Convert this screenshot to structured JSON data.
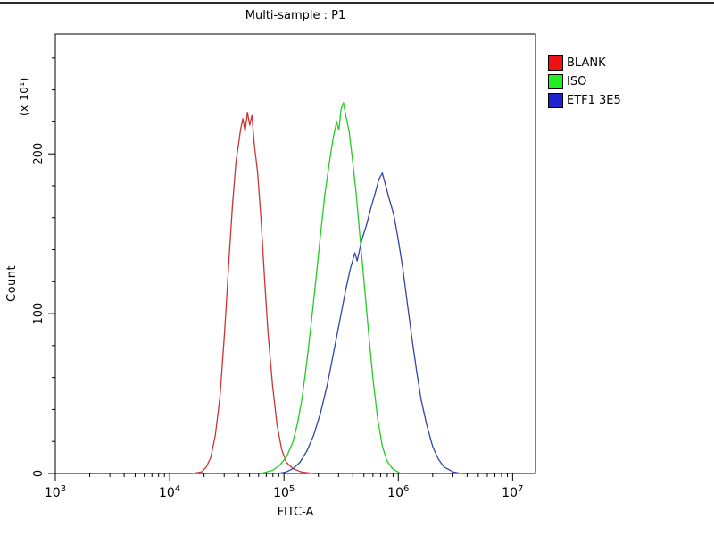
{
  "window": {
    "title_bar": ""
  },
  "chart_data": {
    "type": "line",
    "chart_kind": "flow-cytometry-histogram",
    "title": "Multi-sample : P1",
    "xlabel": "FITC-A",
    "ylabel": "Count",
    "y_multiplier_label": "(x 10¹)",
    "x_scale": "log10",
    "xlim_log10": [
      3,
      7.2
    ],
    "ylim": [
      0,
      275
    ],
    "x_tick_exponents": [
      3,
      4,
      5,
      6,
      7
    ],
    "y_ticks": [
      0,
      100,
      200
    ],
    "y_minor_step": 20,
    "grid": false,
    "legend_position": "outside-top-right",
    "legend": [
      {
        "label": "BLANK",
        "color": "#ee1111"
      },
      {
        "label": "ISO",
        "color": "#22ee22"
      },
      {
        "label": "ETF1 3E5",
        "color": "#2222cc"
      }
    ],
    "series": [
      {
        "name": "BLANK",
        "color": "#cc3333",
        "points_log10x_count": [
          [
            4.2,
            0
          ],
          [
            4.28,
            1
          ],
          [
            4.32,
            4
          ],
          [
            4.36,
            10
          ],
          [
            4.4,
            24
          ],
          [
            4.44,
            48
          ],
          [
            4.48,
            88
          ],
          [
            4.52,
            135
          ],
          [
            4.55,
            168
          ],
          [
            4.58,
            195
          ],
          [
            4.6,
            205
          ],
          [
            4.62,
            215
          ],
          [
            4.64,
            222
          ],
          [
            4.66,
            214
          ],
          [
            4.68,
            226
          ],
          [
            4.7,
            218
          ],
          [
            4.72,
            224
          ],
          [
            4.74,
            206
          ],
          [
            4.77,
            188
          ],
          [
            4.8,
            158
          ],
          [
            4.83,
            122
          ],
          [
            4.86,
            88
          ],
          [
            4.9,
            55
          ],
          [
            4.94,
            30
          ],
          [
            4.98,
            15
          ],
          [
            5.02,
            7
          ],
          [
            5.08,
            3
          ],
          [
            5.15,
            1
          ],
          [
            5.25,
            0
          ]
        ]
      },
      {
        "name": "ISO",
        "color": "#22cc22",
        "points_log10x_count": [
          [
            4.8,
            0
          ],
          [
            4.9,
            2
          ],
          [
            4.96,
            5
          ],
          [
            5.02,
            10
          ],
          [
            5.08,
            20
          ],
          [
            5.12,
            32
          ],
          [
            5.16,
            48
          ],
          [
            5.2,
            70
          ],
          [
            5.24,
            95
          ],
          [
            5.28,
            122
          ],
          [
            5.32,
            150
          ],
          [
            5.36,
            176
          ],
          [
            5.4,
            196
          ],
          [
            5.43,
            210
          ],
          [
            5.46,
            220
          ],
          [
            5.48,
            215
          ],
          [
            5.5,
            228
          ],
          [
            5.52,
            232
          ],
          [
            5.54,
            224
          ],
          [
            5.57,
            214
          ],
          [
            5.6,
            196
          ],
          [
            5.63,
            176
          ],
          [
            5.66,
            152
          ],
          [
            5.7,
            120
          ],
          [
            5.74,
            88
          ],
          [
            5.78,
            58
          ],
          [
            5.82,
            34
          ],
          [
            5.86,
            17
          ],
          [
            5.9,
            8
          ],
          [
            5.95,
            3
          ],
          [
            6.02,
            0
          ]
        ]
      },
      {
        "name": "ETF1 3E5",
        "color": "#3344aa",
        "points_log10x_count": [
          [
            4.95,
            0
          ],
          [
            5.02,
            1
          ],
          [
            5.08,
            3
          ],
          [
            5.14,
            7
          ],
          [
            5.2,
            14
          ],
          [
            5.26,
            24
          ],
          [
            5.32,
            38
          ],
          [
            5.38,
            56
          ],
          [
            5.44,
            78
          ],
          [
            5.5,
            100
          ],
          [
            5.54,
            115
          ],
          [
            5.58,
            128
          ],
          [
            5.62,
            138
          ],
          [
            5.64,
            133
          ],
          [
            5.68,
            146
          ],
          [
            5.72,
            155
          ],
          [
            5.76,
            166
          ],
          [
            5.8,
            176
          ],
          [
            5.83,
            184
          ],
          [
            5.86,
            188
          ],
          [
            5.89,
            180
          ],
          [
            5.92,
            172
          ],
          [
            5.96,
            162
          ],
          [
            6.0,
            146
          ],
          [
            6.04,
            128
          ],
          [
            6.08,
            106
          ],
          [
            6.12,
            84
          ],
          [
            6.16,
            64
          ],
          [
            6.2,
            46
          ],
          [
            6.25,
            30
          ],
          [
            6.3,
            17
          ],
          [
            6.35,
            9
          ],
          [
            6.4,
            4
          ],
          [
            6.48,
            1
          ],
          [
            6.55,
            0
          ]
        ]
      }
    ]
  }
}
